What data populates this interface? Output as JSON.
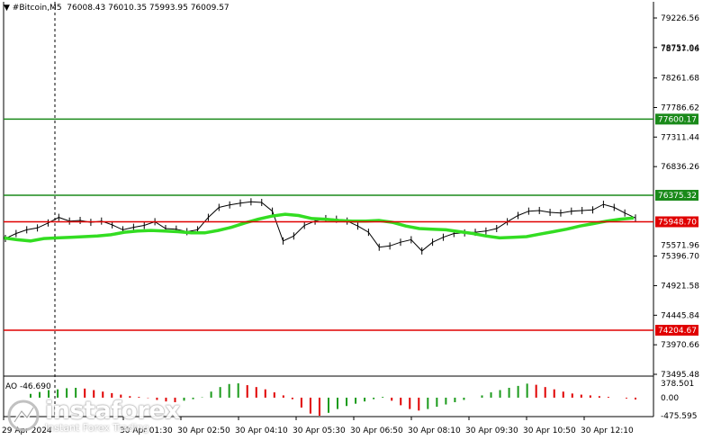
{
  "header": {
    "symbol": "#Bitcoin,M5",
    "ohlc": "76008.43 76010.35 75993.95 76009.57"
  },
  "price_axis": {
    "ticks": [
      "79226.56",
      "78751.94",
      "78737.06",
      "78261.68",
      "77786.62",
      "77311.44",
      "76836.26",
      "76375.32",
      "75571.96",
      "75396.70",
      "74921.58",
      "74445.84",
      "73970.66",
      "73495.48"
    ]
  },
  "levels": [
    {
      "label": "77600.17",
      "price": 77600.17,
      "color": "#1a8a1a"
    },
    {
      "label": "76375.32",
      "price": 76375.32,
      "color": "#1a8a1a"
    },
    {
      "label": "75948.70",
      "price": 75948.7,
      "color": "#e00000"
    },
    {
      "label": "74204.67",
      "price": 74204.67,
      "color": "#e00000"
    }
  ],
  "indicator": {
    "label": "AO -46.690",
    "ticks": [
      "378.501",
      "0.00",
      "-475.595"
    ]
  },
  "time_axis": {
    "labels": [
      "29 Apr 2024",
      "30 Apr 01:30",
      "30 Apr 02:50",
      "30 Apr 04:10",
      "30 Apr 05:30",
      "30 Apr 06:50",
      "30 Apr 08:10",
      "30 Apr 09:30",
      "30 Apr 10:50",
      "30 Apr 12:10"
    ]
  },
  "watermark": {
    "brand": "instaforex",
    "sub": "Instant Forex Trading"
  },
  "chart_data": {
    "type": "line",
    "price_series": {
      "name": "#Bitcoin,M5",
      "values": [
        75680,
        75760,
        75820,
        75850,
        75930,
        76020,
        75960,
        75970,
        75940,
        75960,
        75900,
        75820,
        75860,
        75890,
        75950,
        75840,
        75830,
        75790,
        75820,
        76020,
        76180,
        76220,
        76250,
        76270,
        76260,
        76120,
        75640,
        75720,
        75890,
        75960,
        76000,
        75990,
        75960,
        75880,
        75780,
        75540,
        75560,
        75620,
        75660,
        75480,
        75620,
        75700,
        75760,
        75770,
        75780,
        75800,
        75840,
        75950,
        76050,
        76120,
        76130,
        76100,
        76090,
        76120,
        76130,
        76140,
        76230,
        76180,
        76090,
        76010
      ]
    },
    "moving_average": {
      "values": [
        75690,
        75660,
        75640,
        75680,
        75690,
        75700,
        75710,
        75720,
        75740,
        75780,
        75800,
        75810,
        75800,
        75790,
        75770,
        75770,
        75810,
        75860,
        75930,
        75990,
        76040,
        76070,
        76050,
        76000,
        75990,
        75970,
        75960,
        75960,
        75970,
        75940,
        75880,
        75840,
        75830,
        75820,
        75790,
        75760,
        75720,
        75690,
        75700,
        75710,
        75750,
        75790,
        75830,
        75880,
        75920,
        75960,
        75990,
        76010
      ]
    },
    "ao_histogram": {
      "values": [
        100,
        150,
        200,
        220,
        250,
        260,
        240,
        200,
        160,
        120,
        80,
        40,
        20,
        -10,
        -60,
        -100,
        -120,
        -80,
        -40,
        10,
        160,
        280,
        360,
        378,
        330,
        280,
        220,
        140,
        60,
        -40,
        -260,
        -420,
        -475,
        -400,
        -300,
        -220,
        -160,
        -100,
        -40,
        20,
        -80,
        -200,
        -300,
        -340,
        -300,
        -240,
        -180,
        -120,
        -60,
        0,
        60,
        140,
        200,
        260,
        310,
        370,
        340,
        280,
        220,
        160,
        110,
        80,
        60,
        40,
        20,
        0,
        -20,
        -47
      ]
    }
  }
}
